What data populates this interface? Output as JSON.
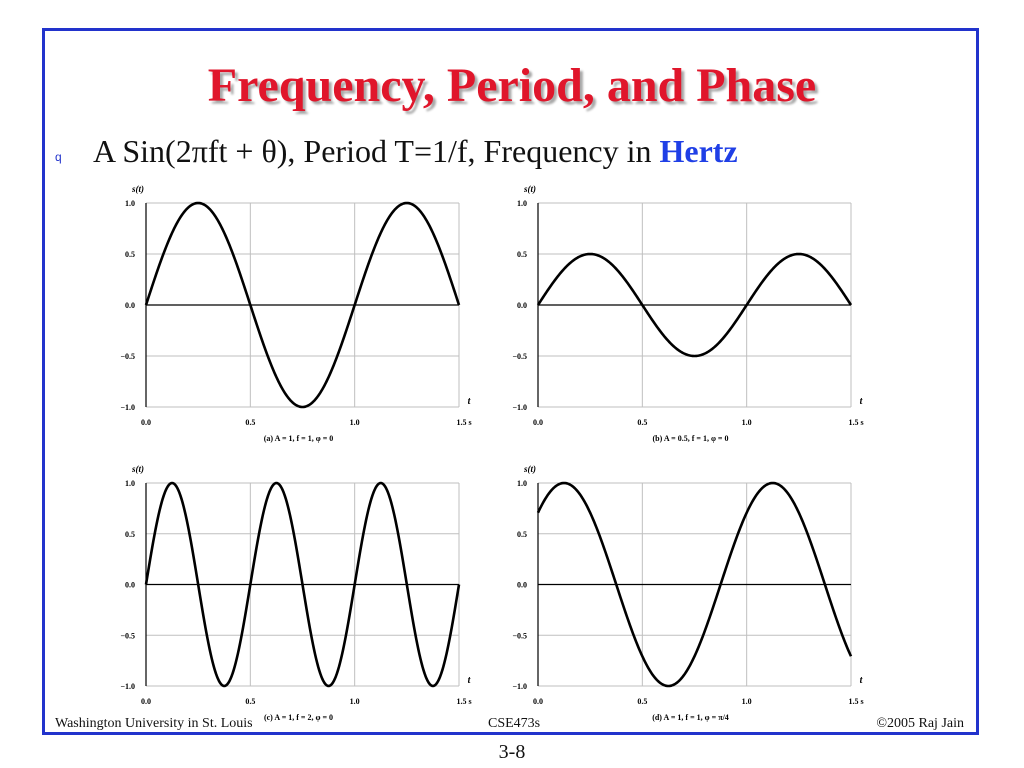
{
  "slide": {
    "title": "Frequency, Period, and Phase",
    "bullet": {
      "marker": "q",
      "text_prefix": "A Sin(2πft + θ), Period T=1/f, Frequency in ",
      "text_highlight": "Hertz"
    },
    "footer": {
      "left": "Washington University in St. Louis",
      "center": "CSE473s",
      "right": "©2005 Raj Jain"
    },
    "slide_number": "3-8",
    "colors": {
      "title": "#e0162b",
      "frame": "#2233cc",
      "highlight": "#1f3fe6",
      "curve": "#000000",
      "grid": "#bfbfbf"
    }
  },
  "chart_data": [
    {
      "type": "line",
      "title": "",
      "caption": "(a) A = 1, f = 1, φ = 0",
      "xlabel": "t",
      "ylabel": "s(t)",
      "xlim": [
        0,
        1.5
      ],
      "ylim": [
        -1,
        1
      ],
      "x_ticks": [
        "0.0",
        "0.5",
        "1.0",
        "1.5 s"
      ],
      "y_ticks": [
        "1.0",
        "0.5",
        "0.0",
        "−0.5",
        "−1.0"
      ],
      "grid": true,
      "function": {
        "A": 1,
        "f": 1,
        "phase": 0
      }
    },
    {
      "type": "line",
      "title": "",
      "caption": "(b) A = 0.5, f = 1, φ = 0",
      "xlabel": "t",
      "ylabel": "s(t)",
      "xlim": [
        0,
        1.5
      ],
      "ylim": [
        -1,
        1
      ],
      "x_ticks": [
        "0.0",
        "0.5",
        "1.0",
        "1.5 s"
      ],
      "y_ticks": [
        "1.0",
        "0.5",
        "0.0",
        "−0.5",
        "−1.0"
      ],
      "grid": true,
      "function": {
        "A": 0.5,
        "f": 1,
        "phase": 0
      }
    },
    {
      "type": "line",
      "title": "",
      "caption": "(c) A = 1, f = 2, φ = 0",
      "xlabel": "t",
      "ylabel": "s(t)",
      "xlim": [
        0,
        1.5
      ],
      "ylim": [
        -1,
        1
      ],
      "x_ticks": [
        "0.0",
        "0.5",
        "1.0",
        "1.5 s"
      ],
      "y_ticks": [
        "1.0",
        "0.5",
        "0.0",
        "−0.5",
        "−1.0"
      ],
      "grid": true,
      "function": {
        "A": 1,
        "f": 2,
        "phase": 0
      }
    },
    {
      "type": "line",
      "title": "",
      "caption": "(d) A = 1, f = 1, φ = π/4",
      "xlabel": "t",
      "ylabel": "s(t)",
      "xlim": [
        0,
        1.5
      ],
      "ylim": [
        -1,
        1
      ],
      "x_ticks": [
        "0.0",
        "0.5",
        "1.0",
        "1.5 s"
      ],
      "y_ticks": [
        "1.0",
        "0.5",
        "0.0",
        "−0.5",
        "−1.0"
      ],
      "grid": true,
      "function": {
        "A": 1,
        "f": 1,
        "phase": 0.7853981634
      }
    }
  ]
}
